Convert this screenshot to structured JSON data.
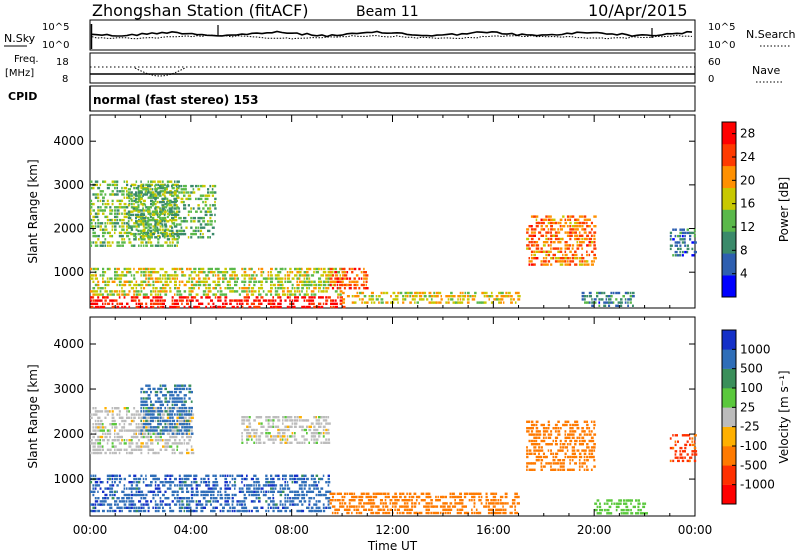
{
  "header": {
    "station": "Zhongshan Station (fitACF)",
    "beam": "Beam 11",
    "date": "10/Apr/2015"
  },
  "panels": {
    "nsky": {
      "label": "N.Sky",
      "tick_high": "10^5",
      "tick_low": "10^0",
      "right_label": "N.Search",
      "right_high": "10^5",
      "right_low": "10^0"
    },
    "freq": {
      "label_line1": "Freq.",
      "label_line2": "[MHz]",
      "tick_high": "18",
      "tick_low": "8",
      "right_label": "Nave",
      "right_high": "60",
      "right_low": "0"
    },
    "cpid": {
      "label": "CPID",
      "value": "normal (fast stereo) 153"
    }
  },
  "chart_data": [
    {
      "type": "heatmap",
      "panel": "power",
      "title": "",
      "xlabel": "Time UT",
      "ylabel": "Slant Range [km]",
      "x_ticks": [
        "00:00",
        "04:00",
        "08:00",
        "12:00",
        "16:00",
        "20:00",
        "00:00"
      ],
      "x_range_hours": [
        0,
        24
      ],
      "y_ticks": [
        "1000",
        "2000",
        "3000",
        "4000"
      ],
      "y_range": [
        180,
        4600
      ],
      "colorbar": {
        "label": "Power [dB]",
        "ticks": [
          "4",
          "8",
          "12",
          "16",
          "20",
          "24",
          "28"
        ],
        "range": [
          0,
          30
        ],
        "colors": [
          "#0000ff",
          "#2e5fb0",
          "#3a8a6a",
          "#5ab84a",
          "#c8c800",
          "#ff9000",
          "#ff3a00",
          "#ff0000"
        ]
      },
      "regions": [
        {
          "t0": 0.0,
          "t1": 10.0,
          "r0": 200,
          "r1": 450,
          "value": 28
        },
        {
          "t0": 10.0,
          "t1": 17.0,
          "r0": 300,
          "r1": 550,
          "value": 18
        },
        {
          "t0": 0.0,
          "t1": 10.0,
          "r0": 450,
          "r1": 1100,
          "value": 16
        },
        {
          "t0": 0.0,
          "t1": 3.5,
          "r0": 1600,
          "r1": 3100,
          "value": 14
        },
        {
          "t0": 1.5,
          "t1": 5.0,
          "r0": 1800,
          "r1": 3000,
          "value": 12
        },
        {
          "t0": 9.5,
          "t1": 11.0,
          "r0": 600,
          "r1": 1100,
          "value": 24
        },
        {
          "t0": 17.3,
          "t1": 20.0,
          "r0": 1200,
          "r1": 2300,
          "value": 22
        },
        {
          "t0": 19.5,
          "t1": 21.5,
          "r0": 250,
          "r1": 550,
          "value": 8
        },
        {
          "t0": 23.0,
          "t1": 24.0,
          "r0": 1400,
          "r1": 2000,
          "value": 8
        }
      ]
    },
    {
      "type": "heatmap",
      "panel": "velocity",
      "title": "",
      "xlabel": "Time UT",
      "ylabel": "Slant Range [km]",
      "x_ticks": [
        "00:00",
        "04:00",
        "08:00",
        "12:00",
        "16:00",
        "20:00",
        "00:00"
      ],
      "x_range_hours": [
        0,
        24
      ],
      "y_ticks": [
        "1000",
        "2000",
        "3000",
        "4000"
      ],
      "y_range": [
        180,
        4600
      ],
      "colorbar": {
        "label": "Velocity [m s⁻¹]",
        "ticks": [
          "1000",
          "500",
          "100",
          "25",
          "-25",
          "-100",
          "-500",
          "-1000"
        ],
        "colors": [
          "#1430c8",
          "#2f6eb8",
          "#3a8f5a",
          "#5ac83c",
          "#bcbcbc",
          "#ffb000",
          "#ff7a00",
          "#ff3000",
          "#ff0000"
        ]
      },
      "regions": [
        {
          "t0": 0.0,
          "t1": 9.5,
          "r0": 300,
          "r1": 1100,
          "value": 800
        },
        {
          "t0": 0.0,
          "t1": 4.0,
          "r0": 1600,
          "r1": 2600,
          "value": 0
        },
        {
          "t0": 2.0,
          "t1": 4.0,
          "r0": 2000,
          "r1": 3100,
          "value": 700
        },
        {
          "t0": 9.5,
          "t1": 17.0,
          "r0": 250,
          "r1": 700,
          "value": -300
        },
        {
          "t0": 17.3,
          "t1": 20.0,
          "r0": 1200,
          "r1": 2300,
          "value": -300
        },
        {
          "t0": 6.0,
          "t1": 9.5,
          "r0": 1800,
          "r1": 2400,
          "value": 0
        },
        {
          "t0": 20.0,
          "t1": 22.0,
          "r0": 250,
          "r1": 550,
          "value": 60
        },
        {
          "t0": 23.0,
          "t1": 24.0,
          "r0": 1400,
          "r1": 2000,
          "value": -700
        }
      ]
    }
  ]
}
